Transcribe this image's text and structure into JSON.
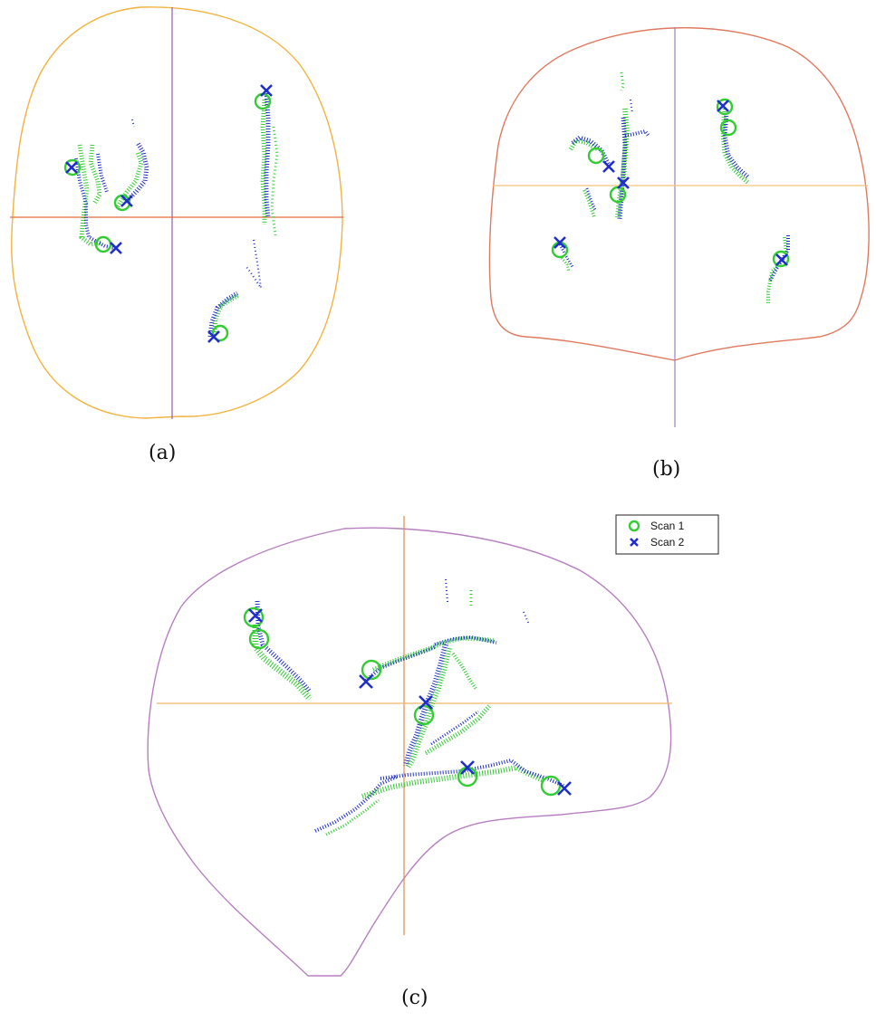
{
  "captions": {
    "a": "(a)",
    "b": "(b)",
    "c": "(c)"
  },
  "legend": {
    "items": [
      {
        "label": "Scan 1",
        "marker": "circle",
        "color": "#33cc33"
      },
      {
        "label": "Scan 2",
        "marker": "x",
        "color": "#1f2ecc"
      }
    ]
  },
  "colors": {
    "scan1": "#33cc33",
    "scan2": "#1f2ecc",
    "outline_a": "#f2b340",
    "outline_b": "#e07a5f",
    "outline_c": "#b77fc1",
    "crosshair_vertical_a": "#8f5fae",
    "crosshair_horizontal_a": "#e36b3a",
    "crosshair_vertical_b": "#a57bbf",
    "crosshair_horizontal_b": "#f2c27a",
    "crosshair_vertical_c": "#e08a4a",
    "crosshair_horizontal_c": "#f2b36a"
  }
}
